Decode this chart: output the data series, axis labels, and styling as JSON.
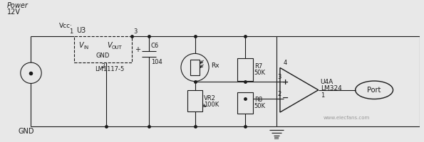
{
  "bg_color": "#e8e8e8",
  "line_color": "#1a1a1a",
  "fill_color": "#e8e8e8",
  "white_fill": "#ffffff",
  "power_label": "Power",
  "v12_label": "12V",
  "vcc_label": "Vcc·",
  "u3_label": "U3",
  "vin_label": "V",
  "vin_sub": "IN",
  "vout_label": "V",
  "vout_sub": "OUT",
  "gnd_label": "GND",
  "lm1117_label": "LM1117-5",
  "c6_label": "C6",
  "c6_val": "104",
  "vr2_label": "VR2",
  "vr2_val": "100K",
  "rx_label": "Rx",
  "r7_label": "R7",
  "r7_val": "50K",
  "r8_label": "R8",
  "r8_val": "50K",
  "u4a_label": "U4A",
  "lm324_label": "LM324",
  "port_label": "Port",
  "gnd2_label": "GND",
  "pin1_label": "1",
  "pin2_label": "2",
  "pin3_label": "3",
  "pin3b_label": "3",
  "pin4_label": "4",
  "pin2b_label": "2",
  "pin1b_label": "1",
  "elecfans": "www.elecfans.com"
}
